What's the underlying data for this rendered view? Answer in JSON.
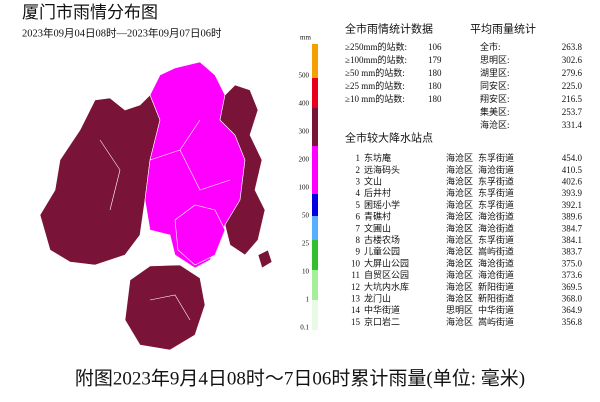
{
  "header": {
    "title": "厦门市雨情分布图",
    "subtitle": "2023年09月04日08时—2023年09月07日06时"
  },
  "legend": {
    "unit": "mm",
    "labels": [
      "500",
      "400",
      "300",
      "200",
      "100",
      "50",
      "25",
      "10",
      "1",
      "0.1"
    ]
  },
  "station_counts": {
    "title": "全市雨情统计数据",
    "rows": [
      [
        "≥250mm的站数:",
        "106"
      ],
      [
        "≥100mm的站数:",
        "179"
      ],
      [
        "≥50 mm的站数:",
        "180"
      ],
      [
        "≥25 mm的站数:",
        "180"
      ],
      [
        "≥10 mm的站数:",
        "180"
      ]
    ]
  },
  "average_rainfall": {
    "title": "平均雨量统计",
    "rows": [
      [
        "全市:",
        "263.8"
      ],
      [
        "思明区:",
        "302.6"
      ],
      [
        "湖里区:",
        "279.6"
      ],
      [
        "同安区:",
        "225.0"
      ],
      [
        "翔安区:",
        "216.5"
      ],
      [
        "集美区:",
        "253.7"
      ],
      [
        "海沧区:",
        "331.4"
      ]
    ]
  },
  "top_stations": {
    "title": "全市较大降水站点",
    "rows": [
      [
        "1",
        "东坊庵",
        "海沧区",
        "东孚街道",
        "454.0"
      ],
      [
        "2",
        "远海码头",
        "海沧区",
        "海沧街道",
        "410.5"
      ],
      [
        "3",
        "文山",
        "海沧区",
        "东孚街道",
        "402.6"
      ],
      [
        "4",
        "后井村",
        "海沧区",
        "东孚街道",
        "393.9"
      ],
      [
        "5",
        "囷瑶小学",
        "海沧区",
        "东孚街道",
        "392.1"
      ],
      [
        "6",
        "青礁村",
        "海沧区",
        "海沧街道",
        "389.6"
      ],
      [
        "7",
        "文圃山",
        "海沧区",
        "海沧街道",
        "384.7"
      ],
      [
        "8",
        "古楼农场",
        "海沧区",
        "东孚街道",
        "384.1"
      ],
      [
        "9",
        "儿童公园",
        "海沧区",
        "嵩屿街道",
        "383.7"
      ],
      [
        "10",
        "大屏山公园",
        "海沧区",
        "海沧街道",
        "375.0"
      ],
      [
        "11",
        "自贸区公园",
        "海沧区",
        "海沧街道",
        "373.6"
      ],
      [
        "12",
        "大坑内水库",
        "海沧区",
        "新阳街道",
        "369.5"
      ],
      [
        "13",
        "龙门山",
        "海沧区",
        "新阳街道",
        "368.0"
      ],
      [
        "14",
        "中华街道",
        "思明区",
        "中华街道",
        "364.9"
      ],
      [
        "15",
        "京口岩二",
        "海沧区",
        "嵩屿街道",
        "356.8"
      ]
    ]
  },
  "caption": "附图2023年9月4日08时～7日06时累计雨量(单位: 毫米)"
}
